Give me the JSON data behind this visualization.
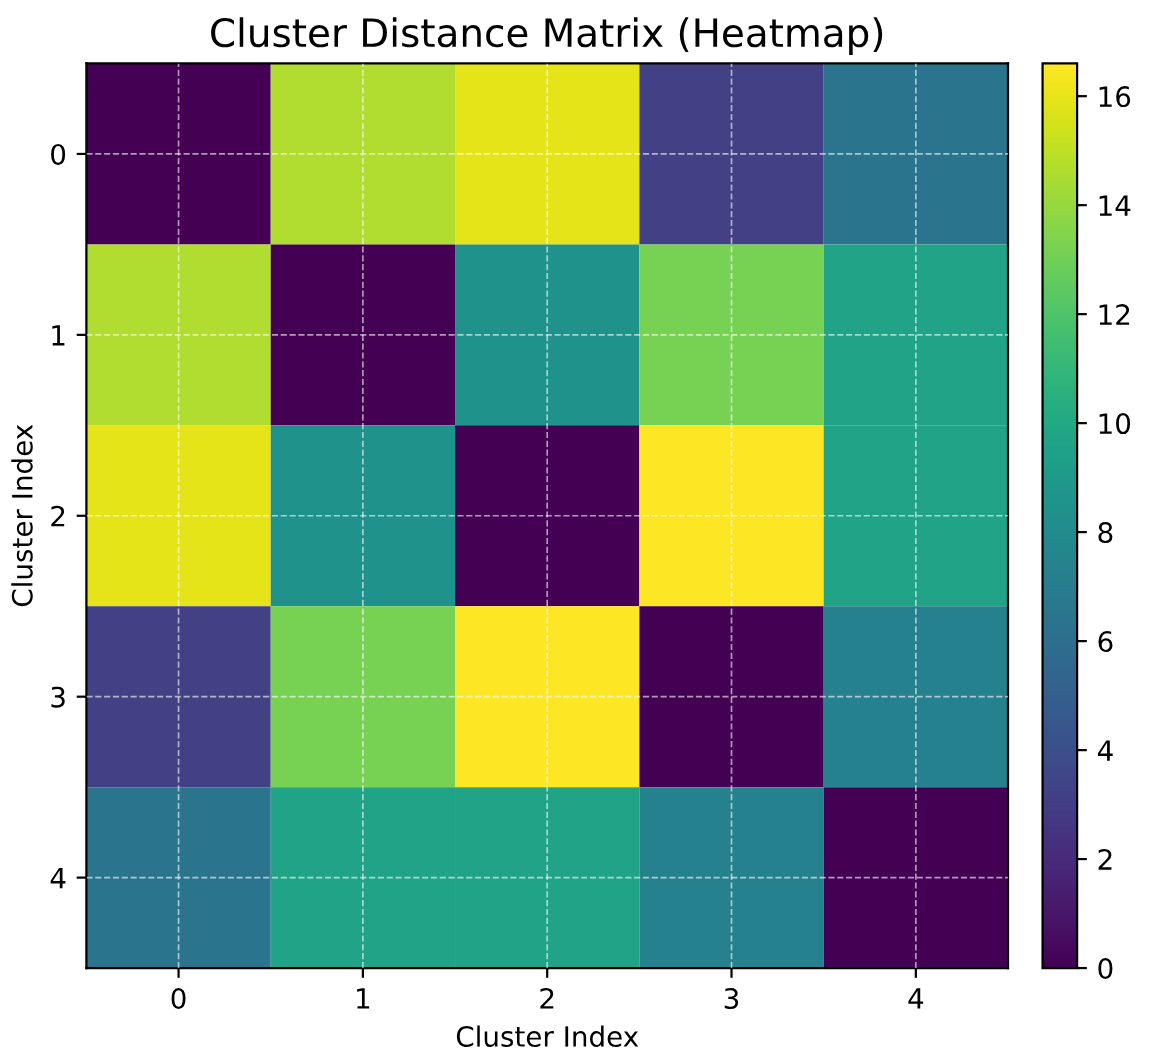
{
  "chart_data": {
    "type": "heatmap",
    "title": "Cluster Distance Matrix (Heatmap)",
    "xlabel": "Cluster Index",
    "ylabel": "Cluster Index",
    "categories": [
      "0",
      "1",
      "2",
      "3",
      "4"
    ],
    "y_categories": [
      "0",
      "1",
      "2",
      "3",
      "4"
    ],
    "cells": [
      [
        0,
        14.6,
        15.9,
        3.2,
        6.4
      ],
      [
        14.6,
        0,
        8.4,
        13.2,
        9.6
      ],
      [
        15.9,
        8.4,
        0,
        16.6,
        9.6
      ],
      [
        3.2,
        13.2,
        16.6,
        0,
        7.2
      ],
      [
        6.4,
        9.6,
        9.6,
        7.2,
        0
      ]
    ],
    "clim": [
      0,
      16.6
    ],
    "cticks": [
      0,
      2,
      4,
      6,
      8,
      10,
      12,
      14,
      16
    ],
    "grid": true
  }
}
